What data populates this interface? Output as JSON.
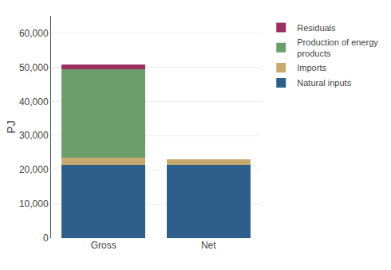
{
  "chart_data": {
    "type": "bar",
    "stacked": true,
    "categories": [
      "Gross",
      "Net"
    ],
    "series": [
      {
        "name": "Natural inputs",
        "color": "#2E5F8A",
        "values": [
          21500,
          21500
        ]
      },
      {
        "name": "Imports",
        "color": "#C8A96E",
        "values": [
          2000,
          1500
        ]
      },
      {
        "name": "Production of energy\nproducts",
        "color": "#6B9E6B",
        "values": [
          26000,
          0
        ]
      },
      {
        "name": "Residuals",
        "color": "#9B3060",
        "values": [
          1200,
          0
        ]
      }
    ],
    "ylabel": "PJ",
    "ylim": [
      0,
      65000
    ],
    "yticks": [
      0,
      {
        "value": 10000,
        "label": "10,000"
      },
      {
        "value": 20000,
        "label": "20,000"
      },
      {
        "value": 30000,
        "label": "30,000"
      },
      {
        "value": 40000,
        "label": "40,000"
      },
      {
        "value": 50000,
        "label": "50,000"
      },
      {
        "value": 60000,
        "label": "60,000"
      }
    ],
    "grid": true,
    "legend": "right"
  }
}
